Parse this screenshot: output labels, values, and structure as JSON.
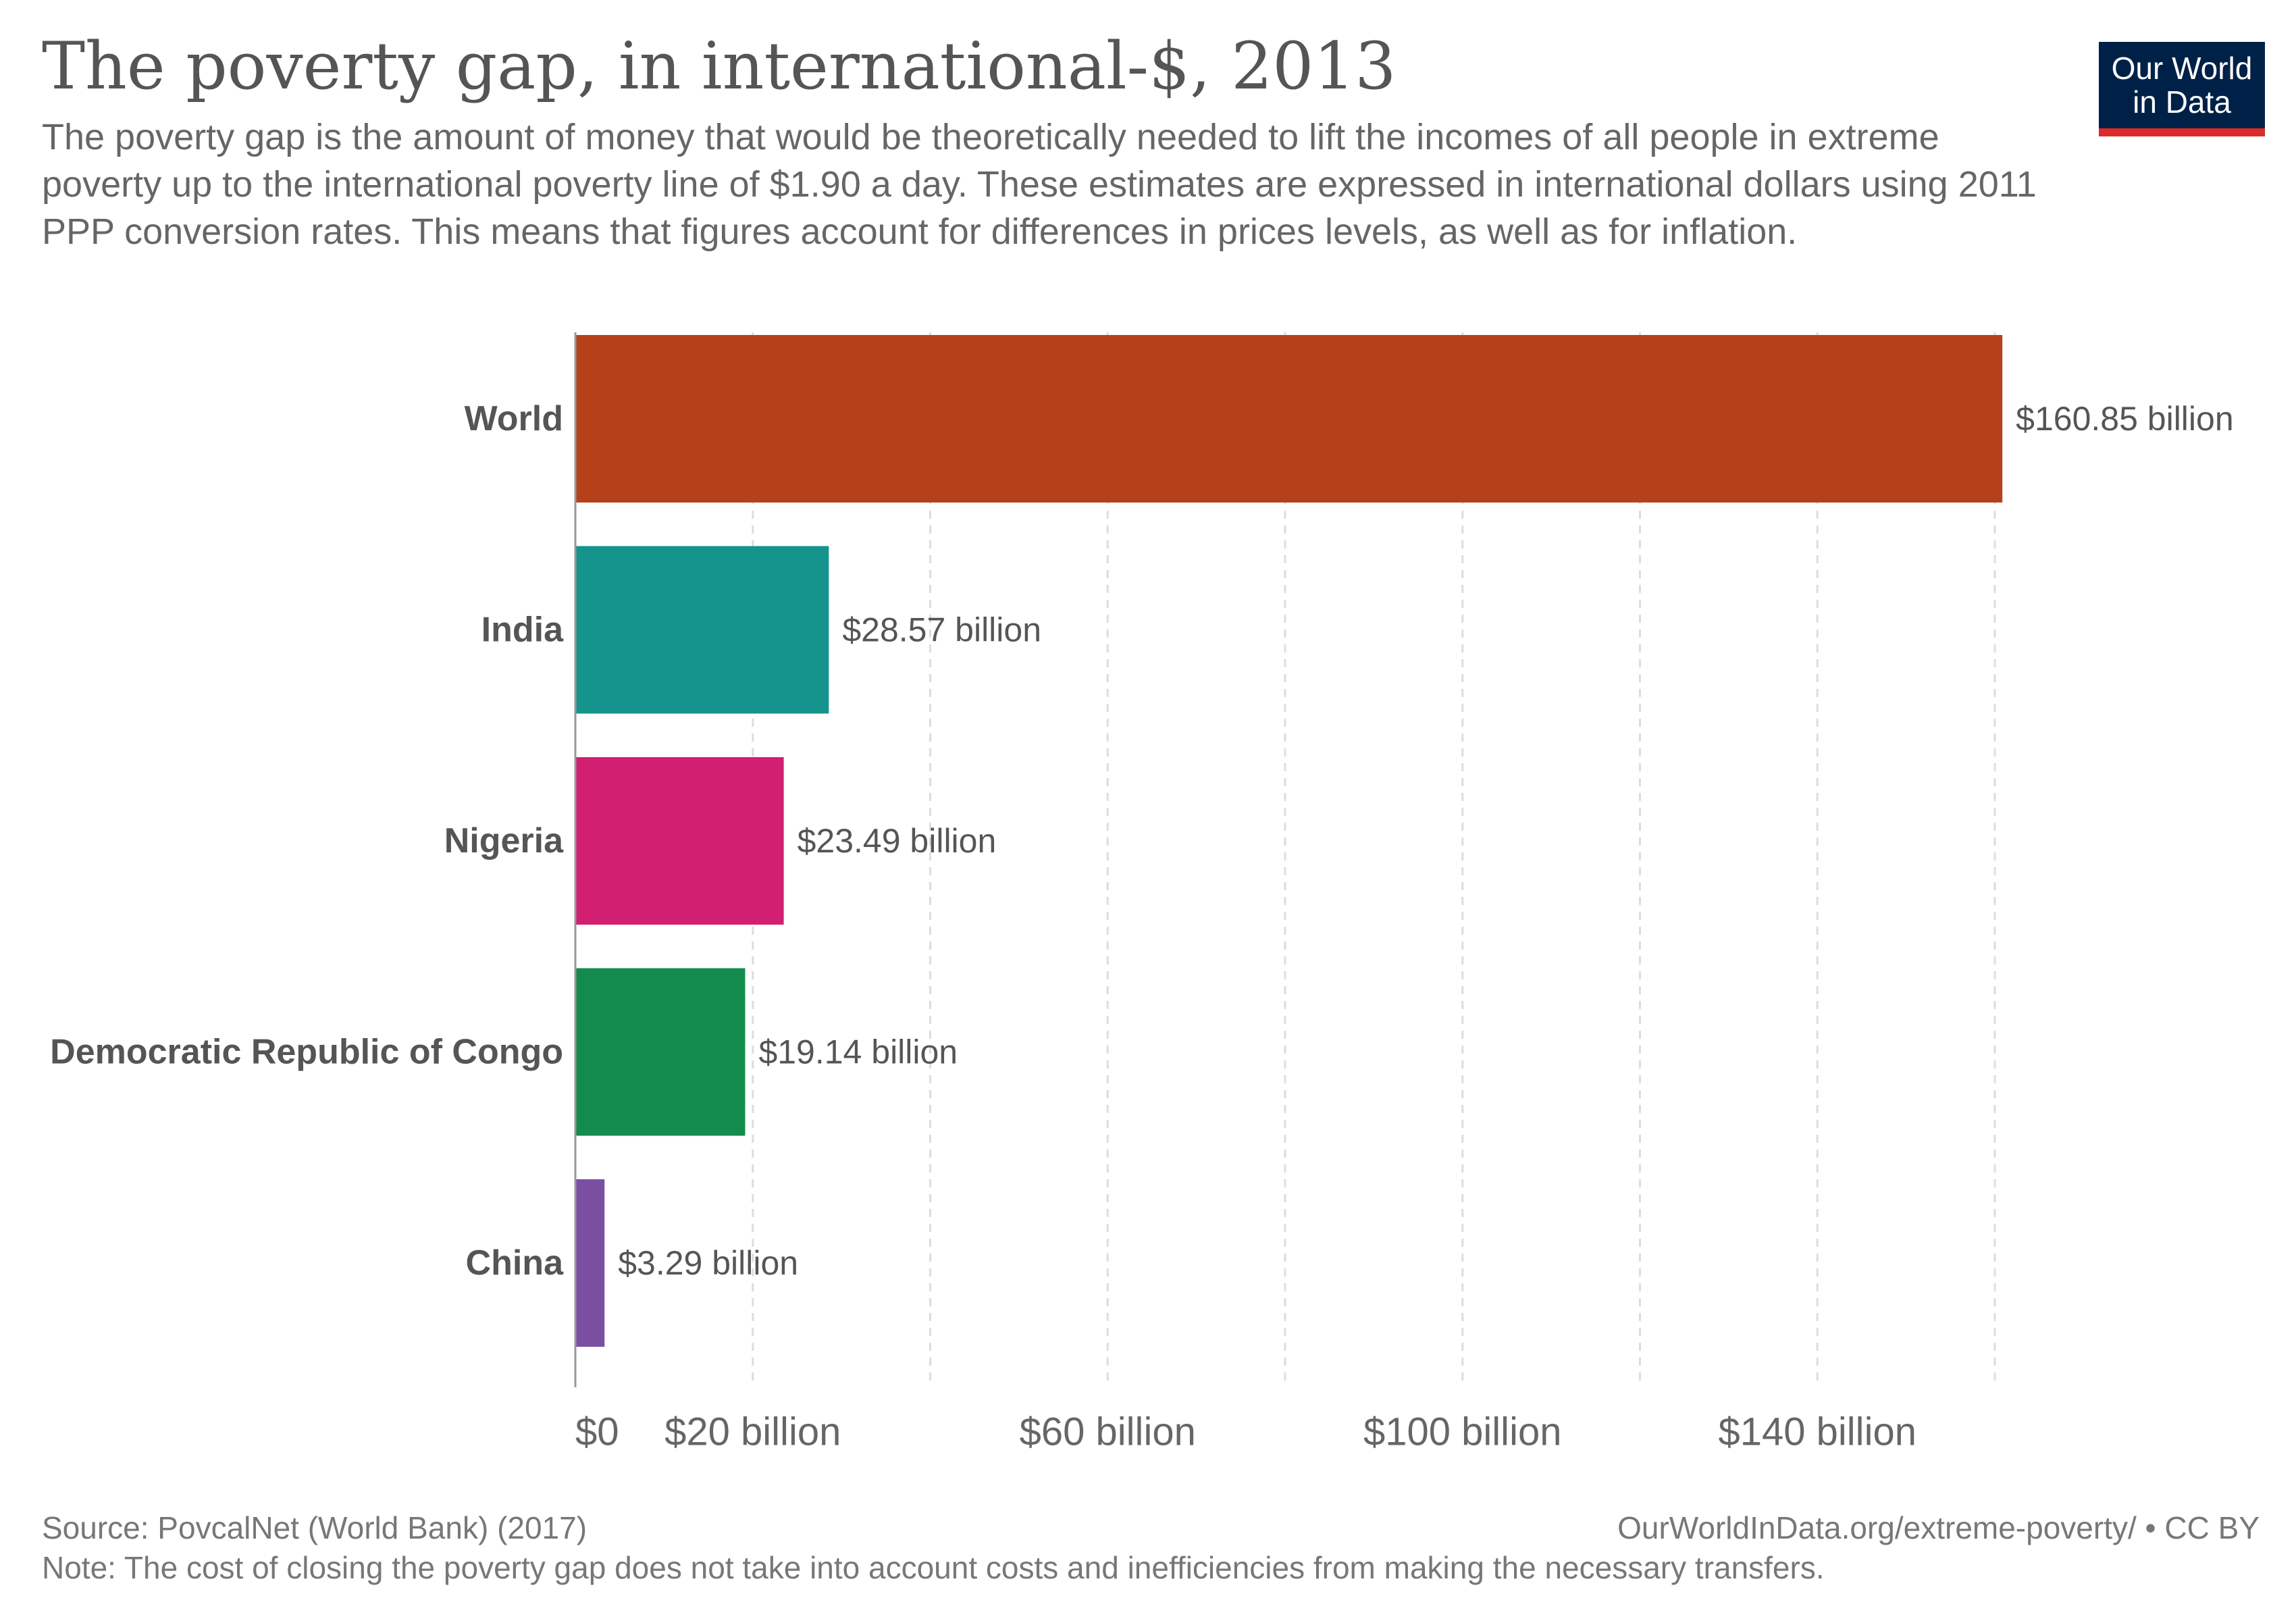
{
  "header": {
    "title": "The poverty gap, in international-$, 2013",
    "subtitle": "The poverty gap is the amount of money that would be theoretically needed to lift the incomes of all people in extreme poverty up to the international poverty line of $1.90 a day. These estimates are expressed in international dollars using 2011 PPP conversion rates. This means that figures account for differences in prices levels, as well as for inflation."
  },
  "logo": {
    "line1": "Our World",
    "line2": "in Data"
  },
  "footer": {
    "source": "Source: PovcalNet (World Bank) (2017)",
    "url": "OurWorldInData.org/extreme-poverty/ • CC BY",
    "note": "Note: The cost of closing the poverty gap does not take into account costs and inefficiencies from making the necessary transfers."
  },
  "chart_data": {
    "type": "bar",
    "orientation": "horizontal",
    "categories": [
      "World",
      "India",
      "Nigeria",
      "Democratic Republic of Congo",
      "China"
    ],
    "values": [
      160.85,
      28.57,
      23.49,
      19.14,
      3.29
    ],
    "value_labels": [
      "$160.85 billion",
      "$28.57 billion",
      "$23.49 billion",
      "$19.14 billion",
      "$3.29 billion"
    ],
    "colors": [
      "#b5411a",
      "#15938d",
      "#d21f72",
      "#138b4c",
      "#7a4fa2"
    ],
    "xlim": [
      0,
      160
    ],
    "gridlines": [
      0,
      20,
      40,
      60,
      80,
      100,
      120,
      140,
      160
    ],
    "tick_values": [
      0,
      20,
      60,
      100,
      140
    ],
    "tick_labels": [
      "$0",
      "$20 billion",
      "$60 billion",
      "$100 billion",
      "$140 billion"
    ],
    "grid": true
  }
}
